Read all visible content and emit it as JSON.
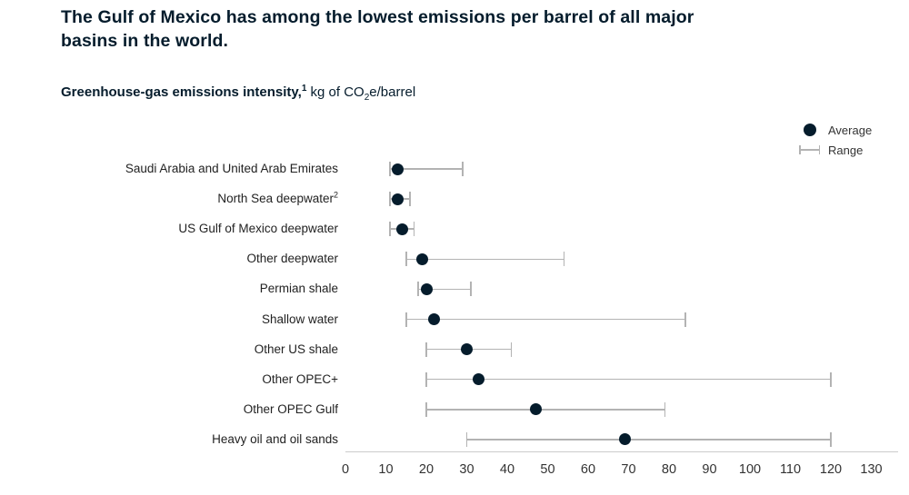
{
  "header": {
    "title_line1": "The Gulf of Mexico has among the lowest emissions per barrel of all major",
    "title_line2": "basins in the world."
  },
  "subtitle": {
    "bold_text": "Greenhouse-gas emissions intensity,",
    "footnote_sup": "1",
    "unit_prefix": " kg of CO",
    "unit_sub": "2",
    "unit_suffix": "e/barrel"
  },
  "legend": {
    "average": "Average",
    "range": "Range"
  },
  "colors": {
    "average_dot": "#051c2c",
    "range_line": "#b3b3b3",
    "axis_line": "#cccccc",
    "tick_text": "#333333",
    "label_text": "#222222",
    "title_text": "#051c2c"
  },
  "chart_data": {
    "type": "dot-range",
    "title": "Greenhouse-gas emissions intensity, kg of CO2e/barrel",
    "legend_entries": [
      "Average",
      "Range"
    ],
    "legend_position": "top-right",
    "grid": false,
    "xlim": [
      0,
      130
    ],
    "x_ticks": [
      0,
      10,
      20,
      30,
      40,
      50,
      60,
      70,
      80,
      90,
      100,
      110,
      120,
      130
    ],
    "categories": [
      "Saudi Arabia and United Arab Emirates",
      "North Sea deepwater",
      "US Gulf of Mexico deepwater",
      "Other deepwater",
      "Permian shale",
      "Shallow water",
      "Other US shale",
      "Other OPEC+",
      "Other OPEC Gulf",
      "Heavy oil and oil sands"
    ],
    "series": [
      {
        "name": "Saudi Arabia and United Arab Emirates",
        "footnote": "",
        "average": 13,
        "range_low": 11,
        "range_high": 29
      },
      {
        "name": "North Sea deepwater",
        "footnote": "2",
        "average": 13,
        "range_low": 11,
        "range_high": 16
      },
      {
        "name": "US Gulf of Mexico deepwater",
        "footnote": "",
        "average": 14,
        "range_low": 11,
        "range_high": 17
      },
      {
        "name": "Other deepwater",
        "footnote": "",
        "average": 19,
        "range_low": 15,
        "range_high": 54
      },
      {
        "name": "Permian shale",
        "footnote": "",
        "average": 20,
        "range_low": 18,
        "range_high": 31
      },
      {
        "name": "Shallow water",
        "footnote": "",
        "average": 22,
        "range_low": 15,
        "range_high": 84
      },
      {
        "name": "Other US shale",
        "footnote": "",
        "average": 30,
        "range_low": 20,
        "range_high": 41
      },
      {
        "name": "Other OPEC+",
        "footnote": "",
        "average": 33,
        "range_low": 20,
        "range_high": 120
      },
      {
        "name": "Other OPEC Gulf",
        "footnote": "",
        "average": 47,
        "range_low": 20,
        "range_high": 79
      },
      {
        "name": "Heavy oil and oil sands",
        "footnote": "",
        "average": 69,
        "range_low": 30,
        "range_high": 120
      }
    ]
  }
}
